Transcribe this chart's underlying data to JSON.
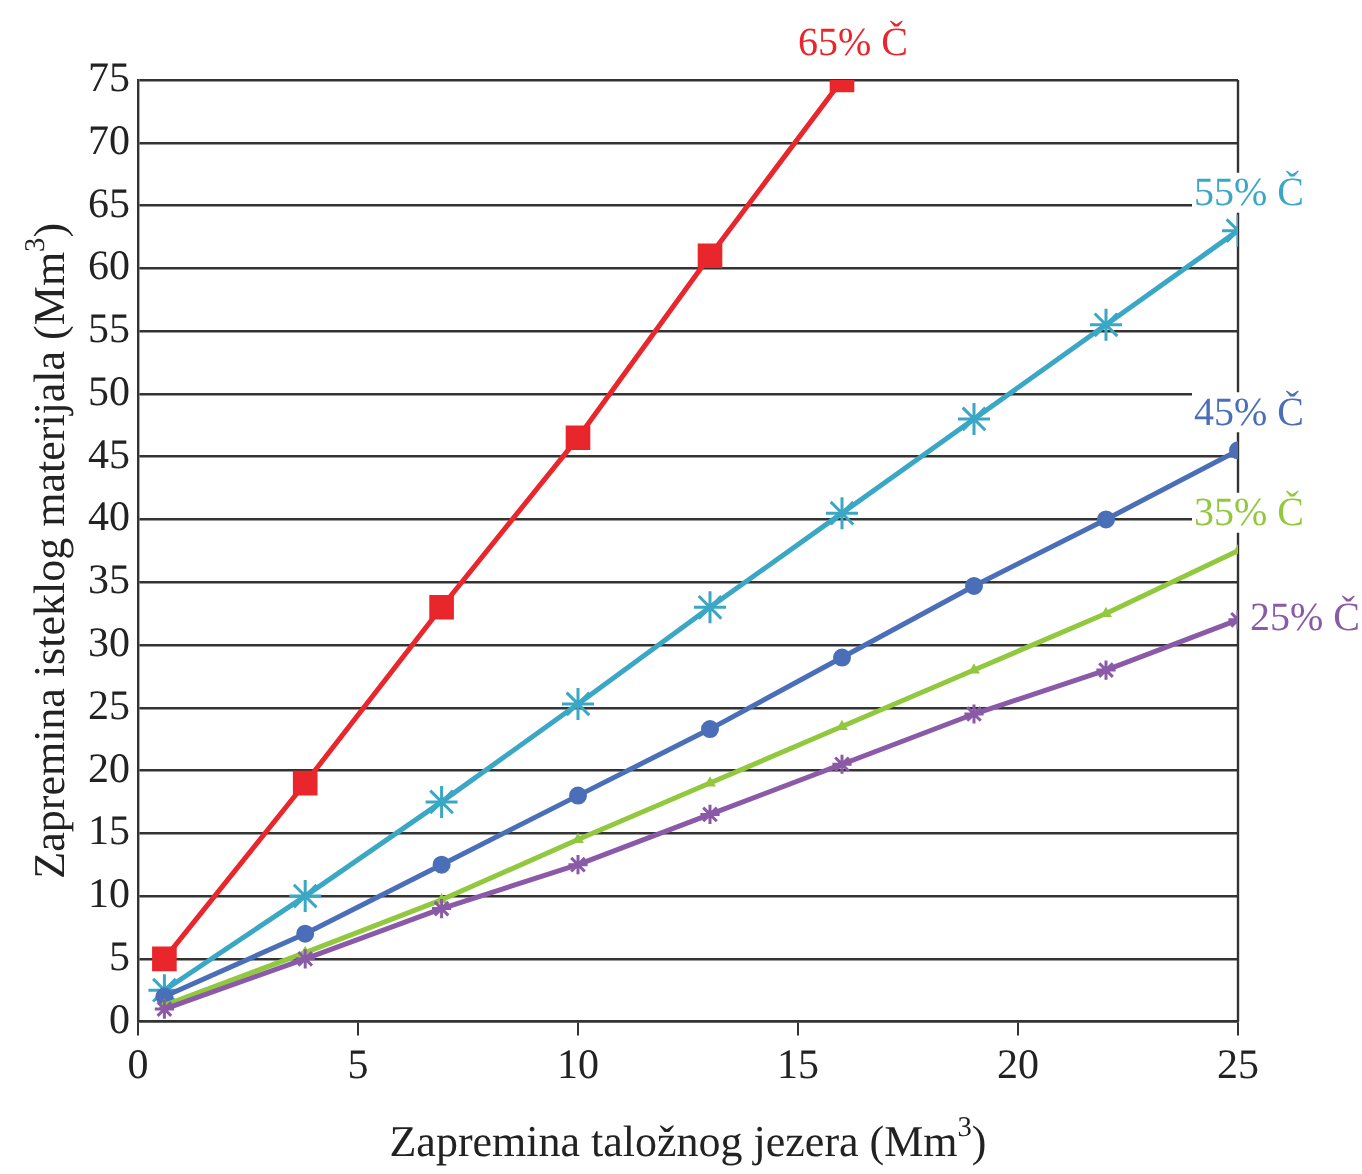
{
  "chart_data": {
    "type": "line",
    "xlabel": "Zapremina taložnog jezera (Mm$^{3}$)",
    "ylabel": "Zapremina isteklog materijala (Mm$^{3}$)",
    "xlim": [
      0,
      25
    ],
    "xticks": [
      0,
      5,
      10,
      15,
      20,
      25
    ],
    "ylim": [
      0,
      75
    ],
    "yticks": [
      0,
      5,
      10,
      15,
      20,
      25,
      30,
      35,
      40,
      45,
      50,
      55,
      60,
      65,
      70,
      75
    ],
    "grid": "y",
    "legend": false,
    "line_style": "solid",
    "series": [
      {
        "name": "65% Č",
        "color": "#e8262b",
        "marker": "square",
        "x": [
          0.6,
          3.8,
          6.9,
          10,
          13,
          16
        ],
        "values": [
          5,
          19,
          33,
          46.5,
          61,
          75
        ]
      },
      {
        "name": "55% Č",
        "color": "#3aa7c4",
        "marker": "cross",
        "x": [
          0.6,
          3.8,
          6.9,
          10,
          13,
          16,
          19,
          22,
          25
        ],
        "values": [
          2.5,
          10,
          17.5,
          25.3,
          33,
          40.5,
          48,
          55.5,
          63
        ]
      },
      {
        "name": "45% Č",
        "color": "#4a6fb8",
        "marker": "circle",
        "x": [
          0.6,
          3.8,
          6.9,
          10,
          13,
          16,
          19,
          22,
          25
        ],
        "values": [
          2,
          7,
          12.5,
          18,
          23.3,
          29,
          34.7,
          40,
          45.5
        ]
      },
      {
        "name": "35% Č",
        "color": "#92c83e",
        "marker": "triangle",
        "x": [
          0.6,
          3.8,
          6.9,
          10,
          13,
          16,
          19,
          22,
          25
        ],
        "values": [
          1.3,
          5.5,
          9.7,
          14.5,
          19,
          23.5,
          28,
          32.5,
          37.5
        ]
      },
      {
        "name": "25% Č",
        "color": "#8a5aa8",
        "marker": "cross",
        "x": [
          0.6,
          3.8,
          6.9,
          10,
          13,
          16,
          19,
          22,
          25
        ],
        "values": [
          1,
          5,
          9,
          12.5,
          16.5,
          20.5,
          24.5,
          28,
          32
        ]
      }
    ]
  }
}
